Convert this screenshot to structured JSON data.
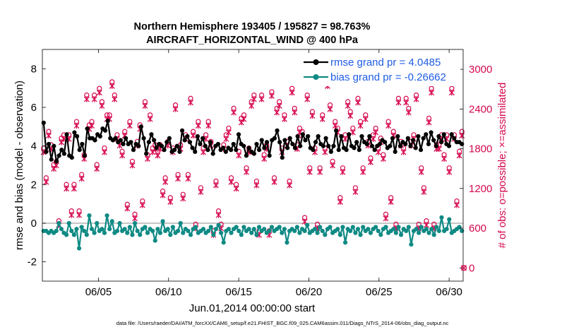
{
  "chart_data": {
    "type": "line",
    "title_line1": "Northern Hemisphere 193405 / 195827 = 98.763%",
    "title_line2": "AIRCRAFT_HORIZONTAL_WIND @ 400 hPa",
    "xlabel": "Jun.01,2014 00:00:00 start",
    "ylabel": "rmse and bias (model - observation)",
    "y2label": "# of obs: o=possible; ×=assimilated",
    "xlim": [
      1,
      31
    ],
    "ylim": [
      -3,
      9
    ],
    "y2lim": [
      -200,
      3300
    ],
    "x_ticks": [
      5,
      10,
      15,
      20,
      25,
      30
    ],
    "x_tick_labels": [
      "06/05",
      "06/10",
      "06/15",
      "06/20",
      "06/25",
      "06/30"
    ],
    "y_ticks": [
      -2,
      0,
      2,
      4,
      6,
      8
    ],
    "y2_ticks": [
      0,
      600,
      1200,
      1800,
      2400,
      3000
    ],
    "zero_line": 0,
    "colors": {
      "rmse": "#000000",
      "bias": "#0f8a84",
      "obs": "#d6074f",
      "legend_text": "#1f5ce6",
      "zero_line": "#b3b3b3"
    },
    "series": [
      {
        "name": "rmse grand pr = 4.0485",
        "axis": "left",
        "values": [
          5.2,
          3.7,
          4.1,
          3.3,
          4.0,
          3.2,
          3.5,
          3.8,
          3.6,
          4.6,
          3.5,
          3.4,
          4.7,
          4.5,
          3.8,
          4.1,
          3.5,
          4.9,
          4.4,
          4.4,
          4.3,
          4.6,
          4.5,
          4.9,
          4.8,
          5.3,
          4.4,
          4.3,
          4.4,
          4.2,
          4.3,
          4.1,
          4.4,
          4.1,
          4.2,
          3.8,
          4.1,
          4.0,
          5.0,
          4.4,
          3.6,
          4.2,
          4.6,
          4.3,
          3.9,
          4.1,
          4.0,
          3.8,
          4.2,
          4.4,
          3.7,
          3.8,
          4.0,
          3.7,
          4.8,
          4.3,
          4.5,
          4.2,
          3.9,
          3.7,
          4.5,
          4.1,
          4.4,
          4.0,
          3.8,
          4.2,
          3.6,
          4.0,
          4.1,
          3.8,
          3.9,
          3.7,
          3.9,
          3.8,
          4.1,
          3.8,
          4.6,
          4.1,
          4.0,
          3.5,
          3.9,
          3.7,
          3.6,
          4.1,
          3.8,
          4.3,
          3.9,
          4.2,
          3.5,
          4.3,
          4.4,
          4.8,
          4.2,
          3.4,
          4.3,
          3.9,
          4.4,
          4.1,
          3.9,
          4.5,
          4.0,
          4.6,
          4.3,
          4.5,
          3.9,
          3.8,
          4.2,
          4.5,
          4.1,
          4.0,
          4.4,
          4.0,
          3.7,
          4.0,
          4.8,
          3.8,
          4.5,
          3.9,
          3.8,
          4.6,
          4.0,
          3.9,
          4.2,
          3.8,
          4.5,
          4.2,
          4.1,
          4.5,
          4.0,
          3.8,
          4.0,
          4.1,
          4.3,
          4.2,
          3.9,
          4.0,
          4.4,
          3.7,
          4.5,
          4.0,
          4.2,
          4.1,
          4.4,
          4.0,
          4.3,
          3.9,
          4.5,
          3.8,
          4.4,
          4.6,
          4.1,
          4.7,
          4.3,
          4.0,
          4.5,
          4.2,
          4.6,
          4.1,
          4.0,
          4.6,
          4.4,
          4.2,
          4.2,
          4.1
        ]
      },
      {
        "name": "bias grand pr = -0.26662",
        "axis": "left",
        "values": [
          -0.4,
          -0.4,
          -0.5,
          -0.4,
          -0.5,
          -0.4,
          0.0,
          -0.3,
          -0.5,
          -0.6,
          0.0,
          -0.4,
          -0.6,
          -0.3,
          -1.3,
          -0.2,
          -0.4,
          -0.6,
          0.4,
          -0.3,
          -0.5,
          0.0,
          -0.4,
          -0.3,
          -0.5,
          0.4,
          -0.3,
          0.1,
          -0.5,
          -0.4,
          0.0,
          -0.4,
          -0.3,
          -0.5,
          -0.2,
          -0.6,
          0.0,
          -0.4,
          -0.6,
          -0.3,
          -0.2,
          -0.5,
          -0.3,
          -0.4,
          -0.9,
          -0.3,
          -0.5,
          0.1,
          -0.4,
          -0.3,
          -0.6,
          -0.2,
          -0.5,
          -0.4,
          0.0,
          -0.5,
          -0.3,
          -0.4,
          -0.6,
          -0.3,
          -0.2,
          -0.5,
          -0.4,
          -0.3,
          -0.5,
          -0.4,
          -0.2,
          -0.6,
          -0.3,
          -0.1,
          -0.5,
          -1.0,
          -0.4,
          -0.3,
          -0.5,
          -0.3,
          -0.2,
          -0.4,
          -0.6,
          -0.2,
          -0.4,
          -0.3,
          -0.5,
          -0.3,
          -0.6,
          -0.2,
          -0.4,
          -0.3,
          -0.5,
          -0.4,
          -0.2,
          -0.4,
          -0.3,
          -0.2,
          -0.5,
          -0.3,
          -1.0,
          -0.4,
          -0.3,
          -0.4,
          -0.2,
          -0.5,
          -0.3,
          -0.4,
          -0.1,
          -0.5,
          -0.4,
          -0.3,
          -0.5,
          -0.2,
          -0.4,
          -0.6,
          -0.3,
          -0.2,
          -0.5,
          -0.4,
          -0.3,
          -0.6,
          -0.2,
          -1.0,
          -0.3,
          -0.4,
          -0.2,
          -0.5,
          -0.3,
          -0.6,
          -0.2,
          -0.4,
          -0.3,
          -0.5,
          -0.3,
          -0.2,
          -0.4,
          -0.6,
          -0.3,
          -0.2,
          -0.5,
          -0.4,
          -0.3,
          -0.5,
          -0.2,
          -0.6,
          -0.3,
          -0.4,
          -0.2,
          -1.1,
          -0.4,
          -0.3,
          -0.5,
          -0.2,
          -0.4,
          -0.3,
          -0.5,
          -0.3,
          -0.6,
          -0.2,
          -0.4,
          0.3,
          -0.4,
          -0.3,
          0.2,
          -0.5,
          -0.4,
          -0.3,
          -0.2,
          -0.4
        ]
      },
      {
        "name": "obs count (possible / assimilated)",
        "axis": "right",
        "values": [
          1800,
          1350,
          2050,
          1850,
          1550,
          1600,
          700,
          1950,
          2000,
          1250,
          2000,
          850,
          1250,
          2200,
          850,
          1400,
          1700,
          2600,
          2150,
          2200,
          2600,
          1550,
          2700,
          2500,
          1800,
          2300,
          2300,
          2800,
          2600,
          2000,
          1900,
          1750,
          2050,
          950,
          2200,
          1600,
          800,
          1900,
          2150,
          1000,
          2500,
          1700,
          2300,
          1800,
          1850,
          1750,
          1850,
          1150,
          1350,
          1900,
          1050,
          1800,
          2450,
          1400,
          1850,
          1100,
          2000,
          1400,
          2550,
          2050,
          650,
          2200,
          1200,
          1800,
          2000,
          2200,
          1900,
          550,
          1300,
          850,
          650,
          1850,
          2000,
          2100,
          1350,
          2400,
          1250,
          1750,
          2250,
          2300,
          1500,
          1800,
          2500,
          2600,
          1300,
          550,
          2600,
          1700,
          1850,
          550,
          2650,
          1350,
          2400,
          2500,
          1800,
          2300,
          1900,
          1300,
          2700,
          2400,
          1850,
          2100,
          2050,
          750,
          2600,
          1500,
          2350,
          1800,
          650,
          1500,
          2300,
          1800,
          2800,
          2450,
          1600,
          2200,
          2100,
          1050,
          1500,
          2000,
          2500,
          2350,
          2100,
          1200,
          2550,
          2200,
          1500,
          2300,
          1900,
          1650,
          2000,
          2100,
          1800,
          1950,
          1700,
          800,
          2200,
          1050,
          2050,
          650,
          2550,
          1900,
          1800,
          2550,
          2400,
          1900,
          2000,
          2600,
          650,
          1500,
          1200,
          700,
          2250,
          2700,
          650,
          1850,
          1850,
          2000,
          1700,
          2000,
          1500,
          2700,
          2000,
          1000,
          1750,
          2050
        ]
      }
    ],
    "legend": [
      "rmse grand pr = 4.0485",
      "bias grand pr = -0.26662"
    ],
    "legend_location": "top-right"
  },
  "footer": "data file: /Users/raeder/DAI/ATM_forcXX/CAM6_setup/f.e21.FHIST_BGC.f09_025.CAM6assim.011/Diags_NTrS_2014-06/obs_diag_output.nc"
}
